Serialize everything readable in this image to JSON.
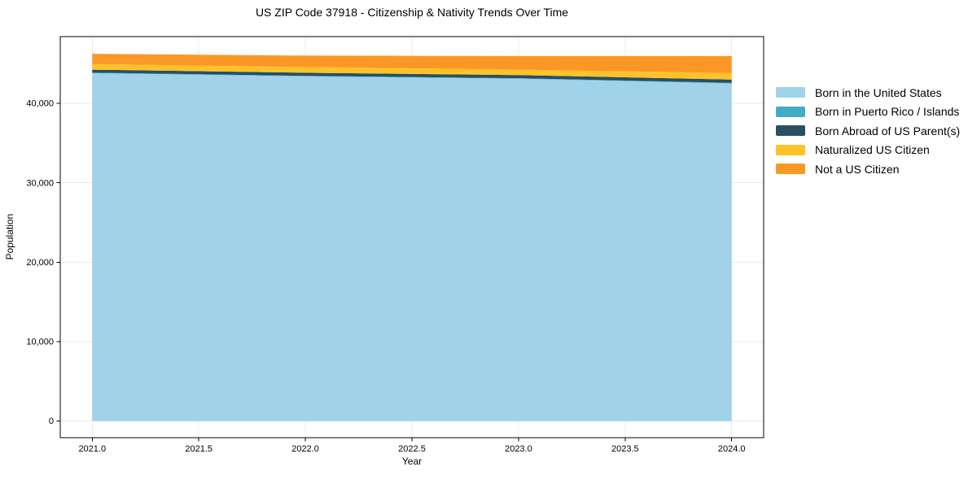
{
  "chart_data": {
    "type": "area",
    "stacked": true,
    "title": "US ZIP Code 37918 - Citizenship & Nativity Trends Over Time",
    "xlabel": "Year",
    "ylabel": "Population",
    "x": [
      2021,
      2022,
      2023,
      2024
    ],
    "series": [
      {
        "name": "Born in the United States",
        "color": "#a0d2ea",
        "values": [
          43800,
          43400,
          43100,
          42500
        ]
      },
      {
        "name": "Born in Puerto Rico / Islands",
        "color": "#42acc6",
        "values": [
          60,
          60,
          60,
          80
        ]
      },
      {
        "name": "Born Abroad of US Parent(s)",
        "color": "#284f63",
        "values": [
          380,
          390,
          400,
          410
        ]
      },
      {
        "name": "Naturalized US Citizen",
        "color": "#ffc229",
        "values": [
          700,
          720,
          680,
          820
        ]
      },
      {
        "name": "Not a US Citizen",
        "color": "#fb9726",
        "values": [
          1290,
          1440,
          1720,
          2150
        ]
      }
    ],
    "xlim": [
      2020.85,
      2024.15
    ],
    "ylim": [
      -2100,
      48400
    ],
    "xticks": {
      "values": [
        2021,
        2021.5,
        2022,
        2022.5,
        2023,
        2023.5,
        2024
      ],
      "labels": [
        "2021.0",
        "2021.5",
        "2022.0",
        "2022.5",
        "2023.0",
        "2023.5",
        "2024.0"
      ]
    },
    "yticks": {
      "values": [
        0,
        10000,
        20000,
        30000,
        40000
      ],
      "labels": [
        "0",
        "10,000",
        "20,000",
        "30,000",
        "40,000"
      ]
    },
    "grid": true,
    "legend_position": "right-outside",
    "colors": {
      "grid": "#ebebeb",
      "spine": "#000000",
      "tick_text": "#000000",
      "background": "#ffffff"
    }
  }
}
